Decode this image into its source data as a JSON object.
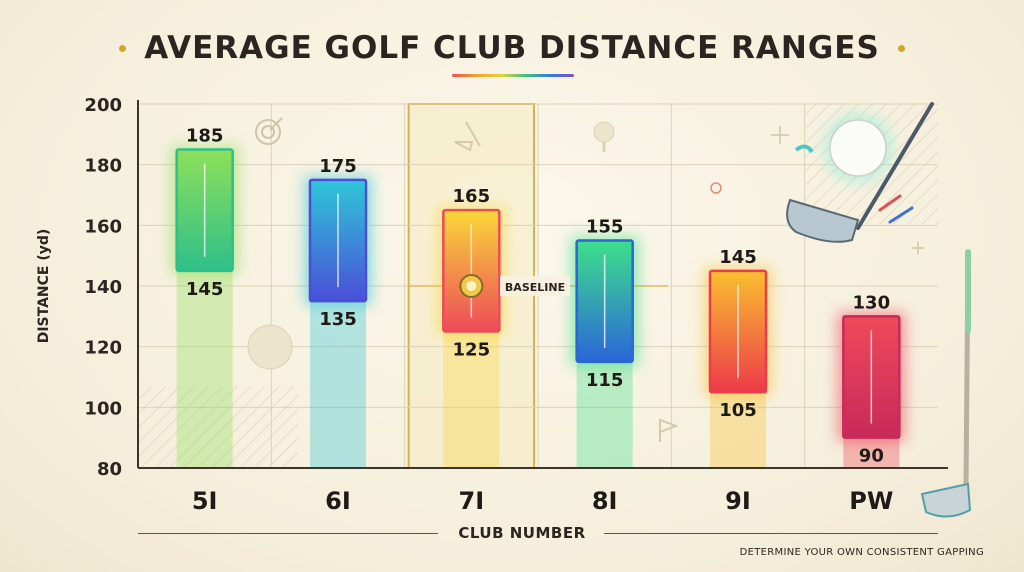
{
  "title": "AVERAGE GOLF CLUB DISTANCE RANGES",
  "footnote": "DETERMINE YOUR OWN CONSISTENT GAPPING",
  "chart_data": {
    "type": "bar",
    "subtype": "floating-range",
    "title": "AVERAGE GOLF CLUB DISTANCE RANGES",
    "xlabel": "CLUB NUMBER",
    "ylabel": "DISTANCE (yd)",
    "ylim": [
      80,
      200
    ],
    "yticks": [
      80,
      100,
      120,
      140,
      160,
      180,
      200
    ],
    "grid": true,
    "categories": [
      "5I",
      "6I",
      "7I",
      "8I",
      "9I",
      "PW"
    ],
    "max_values": [
      185,
      175,
      165,
      155,
      145,
      130
    ],
    "min_values": [
      145,
      135,
      125,
      115,
      105,
      90
    ],
    "highlighted_category": "7I",
    "reference_line": {
      "value": 140,
      "label": "BASELINE"
    },
    "colors": {
      "5I": [
        "#8ee05a",
        "#2fbf8a"
      ],
      "6I": [
        "#2ec7d8",
        "#4a4fd8"
      ],
      "7I": [
        "#f8d838",
        "#ee4a5a"
      ],
      "8I": [
        "#3ee08a",
        "#2a66d8"
      ],
      "9I": [
        "#f8c030",
        "#ee3a4a"
      ],
      "PW": [
        "#ee4a5a",
        "#c82a5a"
      ]
    }
  }
}
